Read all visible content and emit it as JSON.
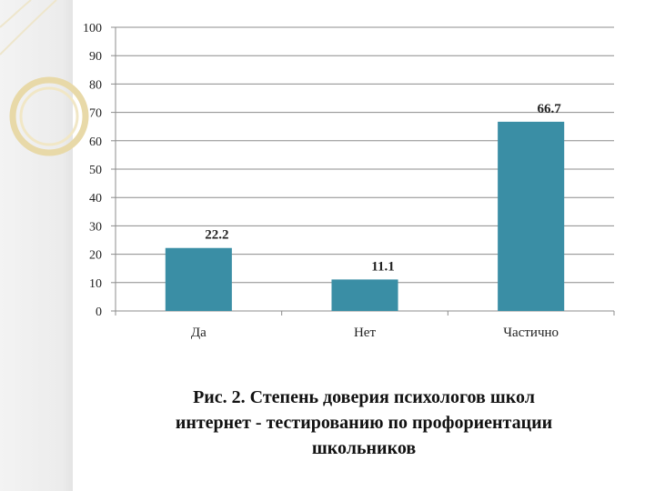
{
  "chart_data": {
    "type": "bar",
    "categories": [
      "Да",
      "Нет",
      "Частично"
    ],
    "values": [
      22.2,
      11.1,
      66.7
    ],
    "data_labels": [
      "22.2",
      "11.1",
      "66.7"
    ],
    "yticks": [
      0,
      10,
      20,
      30,
      40,
      50,
      60,
      70,
      80,
      90,
      100
    ],
    "ylim": [
      0,
      100
    ],
    "grid": true,
    "legend": "none",
    "bar_color": "#3a8ea5"
  },
  "caption": {
    "lines": [
      "Рис. 2. Степень доверия психологов школ",
      "интернет - тестированию по профориентации",
      "школьников"
    ]
  },
  "colors": {
    "bar": "#3a8ea5",
    "grid": "#8c8c8c",
    "decor_ring": "#e8d9a8"
  }
}
